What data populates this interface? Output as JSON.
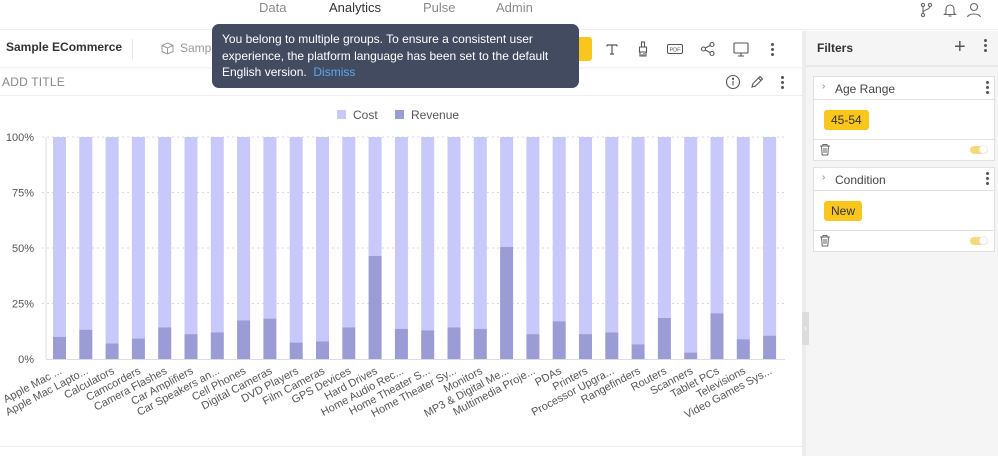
{
  "topnav": {
    "tabs": [
      {
        "label": "Data",
        "active": false
      },
      {
        "label": "Analytics",
        "active": true
      },
      {
        "label": "Pulse",
        "active": false
      },
      {
        "label": "Admin",
        "active": false
      }
    ],
    "icons": [
      "branch-icon",
      "bell-icon",
      "user-icon"
    ]
  },
  "dashboard": {
    "title": "Sample ECommerce",
    "datasource_label": "Sample ECommerce",
    "toolbar_icons": [
      "text-icon",
      "brush-icon",
      "pdf-icon",
      "share-icon",
      "monitor-icon",
      "more-icon"
    ]
  },
  "widget": {
    "title_placeholder": "ADD TITLE",
    "icons": [
      "info-icon",
      "edit-icon",
      "more-icon"
    ]
  },
  "toast": {
    "message": "You belong to multiple groups. To ensure a consistent user experience, the platform language has been set to the default English version.",
    "action": "Dismiss"
  },
  "filters": {
    "title": "Filters",
    "add_label": "+",
    "items": [
      {
        "label": "Age Range",
        "value": "45-54",
        "enabled": true
      },
      {
        "label": "Condition",
        "value": "New",
        "enabled": true
      }
    ]
  },
  "colors": {
    "cost": "#c8c8fb",
    "revenue": "#9b9bd6",
    "accent": "#f8c61c",
    "toast_bg": "#434b61",
    "link": "#5aa8ef"
  },
  "chart_data": {
    "type": "bar",
    "stacked": "percent",
    "title": "",
    "xlabel": "",
    "ylabel": "",
    "ylim": [
      0,
      100
    ],
    "yticks": [
      "0%",
      "25%",
      "50%",
      "75%",
      "100%"
    ],
    "grid": true,
    "legend_position": "top-center",
    "categories": [
      "Apple Mac ...",
      "Apple Mac Lapto...",
      "Calculators",
      "Camcorders",
      "Camera Flashes",
      "Car Amplifiers",
      "Car Speakers an...",
      "Cell Phones",
      "Digital Cameras",
      "DVD Players",
      "Film Cameras",
      "GPS Devices",
      "Hard Drives",
      "Home Audio Rec...",
      "Home Theater S...",
      "Home Theater Sy...",
      "Monitors",
      "MP3 & Digital Me...",
      "Multimedia Proje...",
      "PDAs",
      "Printers",
      "Processor Upgra...",
      "Rangefinders",
      "Routers",
      "Scanners",
      "Tablet PCs",
      "Televisions",
      "Video Games Sys..."
    ],
    "series": [
      {
        "name": "Cost",
        "values": [
          90,
          86.8,
          93,
          90.8,
          85.8,
          88.8,
          88,
          82.6,
          81.8,
          92.6,
          92.1,
          85.8,
          53.6,
          86.4,
          87.1,
          85.8,
          86.4,
          49.5,
          88.8,
          83,
          88.8,
          88,
          93.4,
          81.5,
          97.1,
          79.4,
          91.1,
          89.5
        ]
      },
      {
        "name": "Revenue",
        "values": [
          10,
          13.2,
          7,
          9.2,
          14.2,
          11.2,
          12,
          17.4,
          18.2,
          7.4,
          7.9,
          14.2,
          46.4,
          13.6,
          12.9,
          14.2,
          13.6,
          50.5,
          11.2,
          17,
          11.2,
          12,
          6.6,
          18.5,
          2.9,
          20.6,
          8.9,
          10.5
        ]
      }
    ]
  }
}
